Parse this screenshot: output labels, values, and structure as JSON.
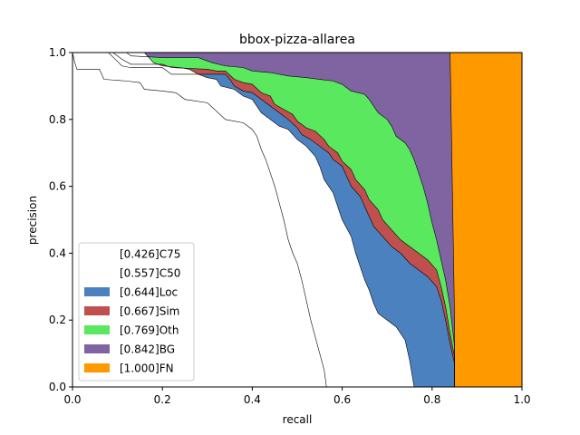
{
  "chart_data": {
    "type": "area",
    "title": "bbox-pizza-allarea",
    "xlabel": "recall",
    "ylabel": "precision",
    "xlim": [
      0,
      1
    ],
    "ylim": [
      0,
      1
    ],
    "xticks": [
      "0.0",
      "0.2",
      "0.4",
      "0.6",
      "0.8",
      "1.0"
    ],
    "yticks": [
      "0.0",
      "0.2",
      "0.4",
      "0.6",
      "0.8",
      "1.0"
    ],
    "grid": false,
    "legend_position": "lower-left",
    "series": [
      {
        "name": "[0.426]C75",
        "color": "#ffffff",
        "points": [
          [
            0,
            1
          ],
          [
            0.005,
            0.97
          ],
          [
            0.01,
            0.95
          ],
          [
            0.03,
            0.95
          ],
          [
            0.06,
            0.95
          ],
          [
            0.07,
            0.92
          ],
          [
            0.12,
            0.915
          ],
          [
            0.15,
            0.91
          ],
          [
            0.16,
            0.89
          ],
          [
            0.2,
            0.885
          ],
          [
            0.23,
            0.88
          ],
          [
            0.25,
            0.86
          ],
          [
            0.3,
            0.85
          ],
          [
            0.34,
            0.8
          ],
          [
            0.38,
            0.79
          ],
          [
            0.4,
            0.77
          ],
          [
            0.41,
            0.75
          ],
          [
            0.42,
            0.71
          ],
          [
            0.43,
            0.68
          ],
          [
            0.44,
            0.64
          ],
          [
            0.45,
            0.6
          ],
          [
            0.46,
            0.55
          ],
          [
            0.47,
            0.5
          ],
          [
            0.48,
            0.44
          ],
          [
            0.49,
            0.4
          ],
          [
            0.5,
            0.37
          ],
          [
            0.51,
            0.32
          ],
          [
            0.52,
            0.26
          ],
          [
            0.53,
            0.2
          ],
          [
            0.54,
            0.15
          ],
          [
            0.55,
            0.1
          ],
          [
            0.56,
            0.05
          ],
          [
            0.565,
            0
          ]
        ]
      },
      {
        "name": "[0.557]C50",
        "color": "#ffffff",
        "points": [
          [
            0,
            1
          ],
          [
            0.16,
            1
          ],
          [
            0.18,
            0.97
          ],
          [
            0.2,
            0.96
          ],
          [
            0.24,
            0.955
          ],
          [
            0.26,
            0.95
          ],
          [
            0.28,
            0.935
          ],
          [
            0.3,
            0.925
          ],
          [
            0.32,
            0.92
          ],
          [
            0.33,
            0.9
          ],
          [
            0.36,
            0.89
          ],
          [
            0.38,
            0.87
          ],
          [
            0.4,
            0.86
          ],
          [
            0.42,
            0.82
          ],
          [
            0.44,
            0.8
          ],
          [
            0.46,
            0.78
          ],
          [
            0.48,
            0.77
          ],
          [
            0.5,
            0.74
          ],
          [
            0.52,
            0.72
          ],
          [
            0.54,
            0.69
          ],
          [
            0.55,
            0.66
          ],
          [
            0.56,
            0.62
          ],
          [
            0.58,
            0.58
          ],
          [
            0.59,
            0.54
          ],
          [
            0.6,
            0.5
          ],
          [
            0.62,
            0.45
          ],
          [
            0.63,
            0.4
          ],
          [
            0.64,
            0.36
          ],
          [
            0.65,
            0.32
          ],
          [
            0.66,
            0.29
          ],
          [
            0.67,
            0.25
          ],
          [
            0.68,
            0.22
          ],
          [
            0.7,
            0.2
          ],
          [
            0.72,
            0.18
          ],
          [
            0.74,
            0.14
          ],
          [
            0.75,
            0.08
          ],
          [
            0.76,
            0
          ]
        ]
      },
      {
        "name": "[0.644]Loc",
        "color": "#4c81bf",
        "points": [
          [
            0,
            1
          ],
          [
            0.08,
            1
          ],
          [
            0.11,
            0.96
          ],
          [
            0.13,
            0.955
          ],
          [
            0.2,
            0.955
          ],
          [
            0.22,
            0.935
          ],
          [
            0.34,
            0.935
          ],
          [
            0.35,
            0.92
          ],
          [
            0.36,
            0.9
          ],
          [
            0.38,
            0.885
          ],
          [
            0.4,
            0.88
          ],
          [
            0.42,
            0.86
          ],
          [
            0.44,
            0.84
          ],
          [
            0.46,
            0.82
          ],
          [
            0.48,
            0.8
          ],
          [
            0.5,
            0.775
          ],
          [
            0.51,
            0.755
          ],
          [
            0.53,
            0.74
          ],
          [
            0.55,
            0.72
          ],
          [
            0.57,
            0.7
          ],
          [
            0.58,
            0.68
          ],
          [
            0.6,
            0.66
          ],
          [
            0.61,
            0.63
          ],
          [
            0.62,
            0.6
          ],
          [
            0.64,
            0.57
          ],
          [
            0.65,
            0.54
          ],
          [
            0.66,
            0.51
          ],
          [
            0.67,
            0.48
          ],
          [
            0.69,
            0.45
          ],
          [
            0.71,
            0.42
          ],
          [
            0.73,
            0.4
          ],
          [
            0.75,
            0.37
          ],
          [
            0.77,
            0.35
          ],
          [
            0.79,
            0.33
          ],
          [
            0.81,
            0.3
          ],
          [
            0.82,
            0.26
          ],
          [
            0.83,
            0.2
          ],
          [
            0.84,
            0.13
          ],
          [
            0.85,
            0.07
          ],
          [
            0.85,
            0
          ]
        ]
      },
      {
        "name": "[0.667]Sim",
        "color": "#c0504d",
        "points": [
          [
            0,
            1
          ],
          [
            0.09,
            1
          ],
          [
            0.11,
            0.98
          ],
          [
            0.13,
            0.965
          ],
          [
            0.2,
            0.965
          ],
          [
            0.22,
            0.955
          ],
          [
            0.3,
            0.95
          ],
          [
            0.32,
            0.945
          ],
          [
            0.34,
            0.945
          ],
          [
            0.36,
            0.92
          ],
          [
            0.38,
            0.91
          ],
          [
            0.4,
            0.905
          ],
          [
            0.42,
            0.88
          ],
          [
            0.44,
            0.87
          ],
          [
            0.45,
            0.845
          ],
          [
            0.47,
            0.83
          ],
          [
            0.49,
            0.815
          ],
          [
            0.5,
            0.795
          ],
          [
            0.52,
            0.775
          ],
          [
            0.54,
            0.765
          ],
          [
            0.56,
            0.74
          ],
          [
            0.57,
            0.72
          ],
          [
            0.59,
            0.7
          ],
          [
            0.6,
            0.675
          ],
          [
            0.62,
            0.65
          ],
          [
            0.63,
            0.62
          ],
          [
            0.65,
            0.59
          ],
          [
            0.66,
            0.56
          ],
          [
            0.68,
            0.53
          ],
          [
            0.69,
            0.5
          ],
          [
            0.71,
            0.47
          ],
          [
            0.73,
            0.44
          ],
          [
            0.75,
            0.42
          ],
          [
            0.77,
            0.4
          ],
          [
            0.79,
            0.38
          ],
          [
            0.81,
            0.35
          ],
          [
            0.82,
            0.3
          ],
          [
            0.83,
            0.24
          ],
          [
            0.84,
            0.16
          ],
          [
            0.85,
            0.09
          ],
          [
            0.85,
            0
          ]
        ]
      },
      {
        "name": "[0.769]Oth",
        "color": "#5ae85f",
        "points": [
          [
            0,
            1
          ],
          [
            0.12,
            1
          ],
          [
            0.13,
            0.99
          ],
          [
            0.2,
            0.985
          ],
          [
            0.28,
            0.985
          ],
          [
            0.31,
            0.97
          ],
          [
            0.34,
            0.96
          ],
          [
            0.38,
            0.955
          ],
          [
            0.4,
            0.945
          ],
          [
            0.44,
            0.94
          ],
          [
            0.48,
            0.93
          ],
          [
            0.52,
            0.925
          ],
          [
            0.55,
            0.92
          ],
          [
            0.58,
            0.915
          ],
          [
            0.6,
            0.905
          ],
          [
            0.62,
            0.885
          ],
          [
            0.65,
            0.875
          ],
          [
            0.66,
            0.86
          ],
          [
            0.67,
            0.84
          ],
          [
            0.68,
            0.82
          ],
          [
            0.7,
            0.8
          ],
          [
            0.71,
            0.78
          ],
          [
            0.72,
            0.75
          ],
          [
            0.74,
            0.73
          ],
          [
            0.75,
            0.71
          ],
          [
            0.76,
            0.68
          ],
          [
            0.77,
            0.64
          ],
          [
            0.78,
            0.6
          ],
          [
            0.79,
            0.55
          ],
          [
            0.8,
            0.49
          ],
          [
            0.81,
            0.44
          ],
          [
            0.82,
            0.38
          ],
          [
            0.83,
            0.32
          ],
          [
            0.84,
            0.24
          ],
          [
            0.85,
            0.12
          ],
          [
            0.85,
            0
          ]
        ]
      },
      {
        "name": "[0.842]BG",
        "color": "#8064a2",
        "points": [
          [
            0,
            1
          ],
          [
            0.84,
            1
          ],
          [
            0.845,
            0.6
          ],
          [
            0.85,
            0.2
          ],
          [
            0.85,
            0
          ]
        ]
      },
      {
        "name": "[1.000]FN",
        "color": "#ff9900",
        "points": [
          [
            0,
            1
          ],
          [
            1,
            1
          ],
          [
            1,
            0
          ]
        ]
      }
    ]
  }
}
